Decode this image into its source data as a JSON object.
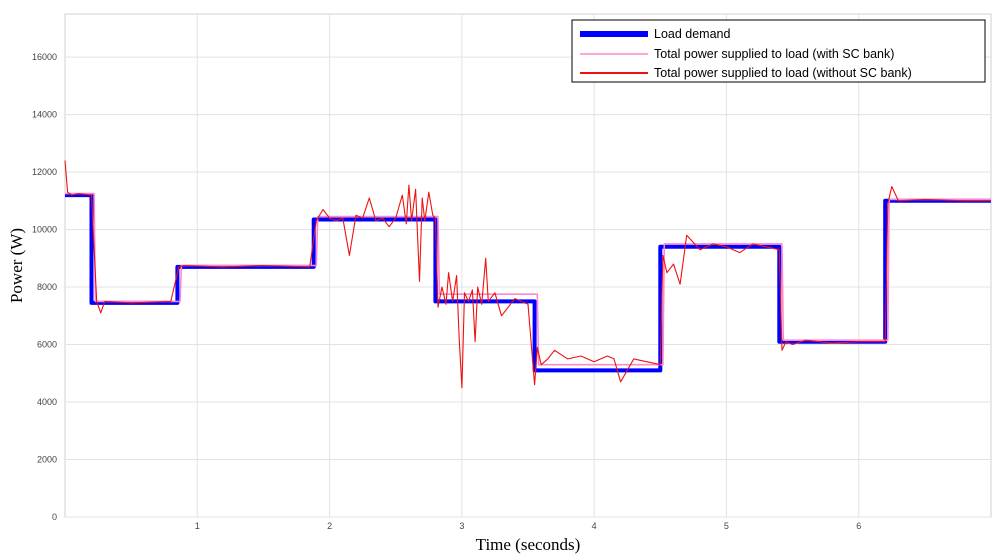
{
  "chart_data": {
    "type": "line",
    "xlabel": "Time (seconds)",
    "ylabel": "Power (W)",
    "xlim": [
      0,
      7
    ],
    "ylim": [
      0,
      17500
    ],
    "xticks": [
      1,
      2,
      3,
      4,
      5,
      6
    ],
    "yticks": [
      0,
      2000,
      4000,
      6000,
      8000,
      10000,
      12000,
      14000,
      16000
    ],
    "grid": true,
    "legend_position": "top-right",
    "series": [
      {
        "name": "Load demand",
        "color": "#0000ff",
        "x": [
          0,
          0.2,
          0.2,
          0.85,
          0.85,
          1.88,
          1.88,
          2.8,
          2.8,
          3.55,
          3.55,
          4.5,
          4.5,
          5.4,
          5.4,
          6.2,
          6.2,
          7.0
        ],
        "y": [
          11200,
          11200,
          7450,
          7450,
          8700,
          8700,
          10350,
          10350,
          7500,
          7500,
          5100,
          5100,
          9400,
          9400,
          6100,
          6100,
          11000,
          11000
        ]
      },
      {
        "name": "Total power supplied to load (with SC bank)",
        "color": "#ff88cc",
        "x": [
          0,
          0.22,
          0.23,
          0.87,
          0.88,
          1.9,
          1.91,
          2.82,
          2.83,
          3.57,
          3.58,
          4.52,
          4.53,
          5.42,
          5.43,
          6.22,
          6.23,
          7.0
        ],
        "y": [
          11250,
          11250,
          7500,
          7500,
          8750,
          8750,
          10450,
          10450,
          7750,
          7750,
          5300,
          5300,
          9500,
          9500,
          6150,
          6150,
          11050,
          11050
        ]
      },
      {
        "name": "Total power supplied to load (without SC bank)",
        "color": "#ee1111",
        "x": [
          0,
          0.02,
          0.05,
          0.1,
          0.2,
          0.24,
          0.27,
          0.3,
          0.5,
          0.8,
          0.86,
          0.9,
          1.2,
          1.5,
          1.85,
          1.9,
          1.95,
          2.0,
          2.05,
          2.1,
          2.15,
          2.2,
          2.25,
          2.3,
          2.35,
          2.4,
          2.45,
          2.5,
          2.55,
          2.58,
          2.6,
          2.62,
          2.65,
          2.68,
          2.7,
          2.72,
          2.75,
          2.78,
          2.8,
          2.82,
          2.85,
          2.88,
          2.9,
          2.93,
          2.96,
          2.98,
          3.0,
          3.02,
          3.05,
          3.08,
          3.1,
          3.12,
          3.15,
          3.18,
          3.2,
          3.25,
          3.3,
          3.35,
          3.4,
          3.45,
          3.5,
          3.55,
          3.57,
          3.6,
          3.65,
          3.7,
          3.8,
          3.9,
          4.0,
          4.1,
          4.15,
          4.2,
          4.3,
          4.4,
          4.5,
          4.52,
          4.55,
          4.6,
          4.65,
          4.7,
          4.8,
          4.9,
          5.0,
          5.1,
          5.2,
          5.3,
          5.4,
          5.42,
          5.45,
          5.5,
          5.6,
          5.8,
          6.0,
          6.2,
          6.22,
          6.25,
          6.3,
          6.5,
          6.8,
          7.0
        ],
        "y": [
          12400,
          11300,
          11200,
          11250,
          11200,
          7500,
          7100,
          7500,
          7450,
          7500,
          8700,
          8750,
          8700,
          8750,
          8700,
          10300,
          10700,
          10400,
          10300,
          10400,
          9100,
          10500,
          10400,
          11100,
          10300,
          10400,
          10100,
          10400,
          11200,
          10200,
          11550,
          10300,
          11400,
          8200,
          11100,
          10300,
          11300,
          10500,
          10400,
          7300,
          8000,
          7400,
          8500,
          7500,
          8400,
          6200,
          4500,
          7800,
          7500,
          7900,
          6100,
          8000,
          7400,
          9000,
          7500,
          7800,
          7000,
          7300,
          7600,
          7500,
          7400,
          4600,
          5900,
          5300,
          5500,
          5800,
          5500,
          5600,
          5400,
          5600,
          5500,
          4700,
          5500,
          5400,
          5300,
          9100,
          8500,
          8800,
          8100,
          9800,
          9300,
          9500,
          9400,
          9200,
          9500,
          9400,
          9300,
          5800,
          6100,
          6000,
          6150,
          6050,
          6100,
          6100,
          10900,
          11500,
          11000,
          11050,
          11000,
          11000
        ]
      }
    ]
  }
}
